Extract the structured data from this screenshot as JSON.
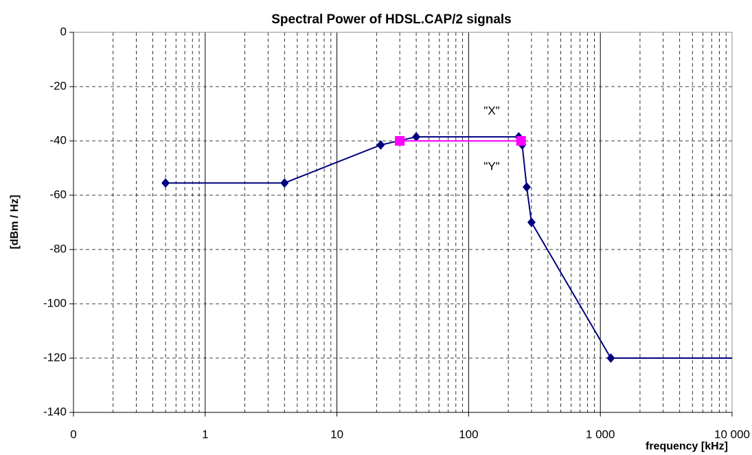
{
  "chart_data": {
    "type": "line",
    "title": "Spectral Power of HDSL.CAP/2 signals",
    "x_label": "frequency [kHz]",
    "y_label": "[dBm / Hz]",
    "log_x": true,
    "grid": true,
    "xlim": [
      0.1,
      10000
    ],
    "xticks": [
      {
        "value": 0.1,
        "label": "0"
      },
      1,
      10,
      100,
      {
        "value": 1000,
        "label": "1 000"
      },
      {
        "value": 10000,
        "label": "10 000"
      }
    ],
    "ylim": [
      -140,
      0
    ],
    "yticks": [
      0,
      -20,
      -40,
      -60,
      -80,
      -100,
      -120,
      -140
    ],
    "series": [
      {
        "name": "\"X\"",
        "color": "#000080",
        "marker": "diamond",
        "x": [
          0.5,
          4,
          21.5,
          40,
          240,
          255,
          276,
          300,
          1200,
          20000
        ],
        "values": [
          -55.5,
          -55.5,
          -41.5,
          -38.5,
          -38.5,
          -41.5,
          -57,
          -70,
          -120,
          -120
        ]
      },
      {
        "name": "\"Y\"",
        "color": "#ff00ff",
        "marker": "square",
        "x": [
          30,
          250
        ],
        "values": [
          -40,
          -40
        ]
      }
    ]
  }
}
